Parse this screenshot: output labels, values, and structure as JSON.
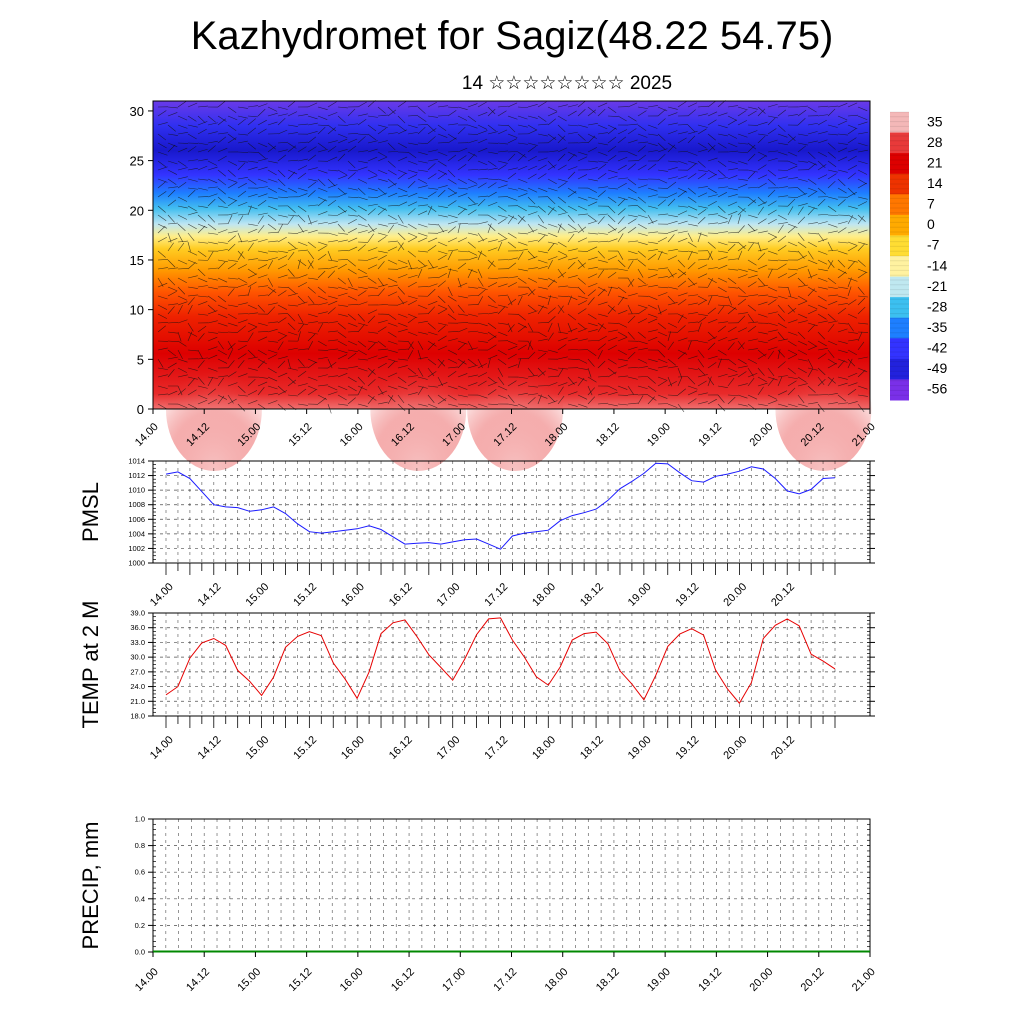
{
  "header": {
    "title": "Kazhydromet for Sagiz(48.22 54.75)",
    "subtitle": "14 ☆☆☆☆☆☆☆☆ 2025"
  },
  "time_ticks": [
    "14.00",
    "14.12",
    "15.00",
    "15.12",
    "16.00",
    "16.12",
    "17.00",
    "17.12",
    "18.00",
    "18.12",
    "19.00",
    "19.12",
    "20.00",
    "20.12",
    "21.00"
  ],
  "chart_data": [
    {
      "type": "heatmap",
      "name": "cross-section",
      "yticks": [
        "0",
        "5",
        "10",
        "15",
        "20",
        "25",
        "30"
      ],
      "ylim": [
        0,
        31
      ],
      "colorbar": {
        "labels": [
          "35",
          "28",
          "21",
          "14",
          "7",
          "0",
          "-7",
          "-14",
          "-21",
          "-28",
          "-35",
          "-42",
          "-49",
          "-56"
        ],
        "colors": [
          "#f4b8b8",
          "#e83a3a",
          "#dd0000",
          "#ee3300",
          "#ff7700",
          "#ffaa00",
          "#ffdd33",
          "#fff2a0",
          "#bfe8f0",
          "#3cc0f0",
          "#1e7fff",
          "#3333ff",
          "#2222dd",
          "#7a30e8"
        ]
      }
    },
    {
      "type": "line",
      "name": "pmsl",
      "ylabel": "PMSL",
      "ylim": [
        1000,
        1014
      ],
      "yticks": [
        "1000",
        "1002",
        "1004",
        "1006",
        "1008",
        "1010",
        "1012",
        "1014"
      ],
      "color": "#1a1aff",
      "x": [
        0,
        3,
        6,
        9,
        12,
        15,
        18,
        21,
        24,
        27,
        30,
        33,
        36,
        39,
        42,
        45,
        48,
        51,
        54,
        57,
        60,
        63,
        66,
        69,
        72,
        75,
        78,
        81,
        84,
        87,
        90,
        93,
        96,
        99,
        102,
        105,
        108,
        111,
        114,
        117,
        120,
        123,
        126,
        129,
        132,
        135,
        138,
        141,
        144,
        147,
        150,
        153,
        156,
        159,
        162,
        165,
        168
      ],
      "values": [
        1012.2,
        1012.5,
        1011.6,
        1009.8,
        1008.0,
        1007.7,
        1007.6,
        1007.1,
        1007.3,
        1007.7,
        1006.8,
        1005.4,
        1004.3,
        1004.1,
        1004.3,
        1004.5,
        1004.7,
        1005.1,
        1004.6,
        1003.6,
        1002.6,
        1002.7,
        1002.8,
        1002.6,
        1002.9,
        1003.2,
        1003.3,
        1002.6,
        1001.9,
        1003.7,
        1004.1,
        1004.3,
        1004.5,
        1005.8,
        1006.5,
        1006.9,
        1007.4,
        1008.6,
        1010.2,
        1011.2,
        1012.3,
        1013.7,
        1013.6,
        1012.4,
        1011.3,
        1011.1,
        1011.9,
        1012.2,
        1012.6,
        1013.2,
        1012.9,
        1011.6,
        1009.9,
        1009.5,
        1010.1,
        1011.6,
        1011.7
      ]
    },
    {
      "type": "line",
      "name": "temp",
      "ylabel": "TEMP at 2 M",
      "ylim": [
        18,
        39
      ],
      "yticks": [
        "18.0",
        "21.0",
        "24.0",
        "27.0",
        "30.0",
        "33.0",
        "36.0",
        "39.0"
      ],
      "color": "#e60000",
      "x": [
        0,
        3,
        6,
        9,
        12,
        15,
        18,
        21,
        24,
        27,
        30,
        33,
        36,
        39,
        42,
        45,
        48,
        51,
        54,
        57,
        60,
        63,
        66,
        69,
        72,
        75,
        78,
        81,
        84,
        87,
        90,
        93,
        96,
        99,
        102,
        105,
        108,
        111,
        114,
        117,
        120,
        123,
        126,
        129,
        132,
        135,
        138,
        141,
        144,
        147,
        150,
        153,
        156,
        159,
        162,
        165,
        168
      ],
      "values": [
        22.3,
        24.0,
        29.8,
        32.9,
        33.8,
        32.4,
        27.3,
        25.1,
        22.2,
        25.9,
        32.0,
        34.2,
        35.2,
        34.4,
        28.8,
        25.5,
        21.6,
        27.0,
        34.8,
        37.0,
        37.6,
        34.2,
        30.5,
        27.9,
        25.3,
        29.6,
        34.6,
        37.8,
        38.0,
        33.5,
        30.0,
        26.0,
        24.3,
        28.0,
        33.5,
        34.8,
        35.1,
        32.7,
        27.2,
        24.5,
        21.3,
        26.3,
        32.2,
        34.7,
        35.8,
        34.5,
        27.4,
        23.5,
        20.6,
        24.8,
        33.8,
        36.5,
        37.8,
        36.4,
        30.6,
        29.2,
        27.6
      ]
    },
    {
      "type": "bar",
      "name": "precip",
      "ylabel": "PRECIP, mm",
      "ylim": [
        0,
        1
      ],
      "yticks": [
        "0.0",
        "0.2",
        "0.4",
        "0.6",
        "0.8",
        "1.0"
      ],
      "color": "#008800",
      "values": []
    }
  ]
}
